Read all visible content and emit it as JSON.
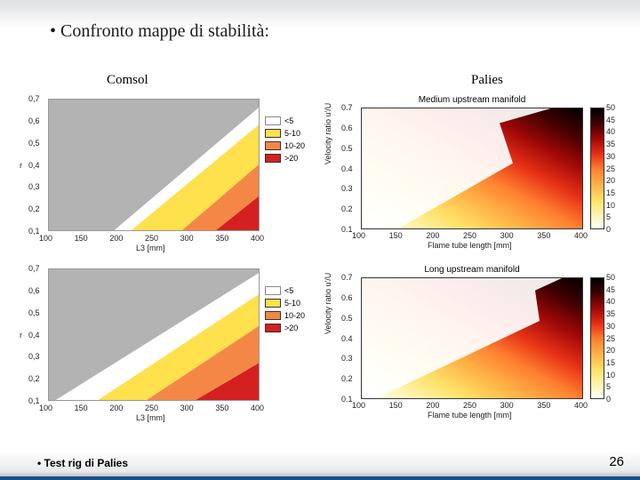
{
  "main_title": "Confronto mappe di stabilità:",
  "columns": {
    "left": "Comsol",
    "right": "Palies"
  },
  "footer": {
    "text": "Test rig di Palies",
    "page": "26",
    "bar_color": "#1b4f8b"
  },
  "comsol": {
    "type": "contour-band",
    "xlabel": "L3 [mm]",
    "ylabel": "r",
    "xlim": [
      100,
      400
    ],
    "xticks": [
      100,
      150,
      200,
      250,
      300,
      350,
      400
    ],
    "ylim": [
      0.1,
      0.7
    ],
    "yticks": [
      0.1,
      0.2,
      0.3,
      0.4,
      0.5,
      0.6,
      0.7
    ],
    "bands": [
      {
        "label": "<5",
        "color": "#b3b3b3"
      },
      {
        "label": "5-10",
        "color": "#ffe04d"
      },
      {
        "label": "10-20",
        "color": "#f58746"
      },
      {
        "label": ">20",
        "color": "#d42020"
      }
    ],
    "background_color": "#ffffff",
    "grid_color": "#c8c8c8",
    "label_fontsize": 9,
    "top": {
      "grey_poly": [
        [
          0,
          0
        ],
        [
          1,
          0
        ],
        [
          1,
          0.05
        ],
        [
          0.3,
          1
        ],
        [
          0,
          1
        ]
      ],
      "white_poly": [
        [
          0.05,
          1
        ],
        [
          0.3,
          1
        ],
        [
          1,
          0.05
        ],
        [
          1,
          0.18
        ],
        [
          0.38,
          1
        ]
      ],
      "yellow_poly": [
        [
          0.38,
          1
        ],
        [
          1,
          0.18
        ],
        [
          1,
          0.48
        ],
        [
          0.62,
          1
        ]
      ],
      "orange_poly": [
        [
          0.62,
          1
        ],
        [
          1,
          0.48
        ],
        [
          1,
          0.72
        ],
        [
          0.78,
          1
        ]
      ],
      "red_poly": [
        [
          0.78,
          1
        ],
        [
          1,
          0.72
        ],
        [
          1,
          1
        ]
      ]
    },
    "bottom": {
      "grey_poly": [
        [
          0,
          0
        ],
        [
          1,
          0
        ],
        [
          1,
          0.02
        ],
        [
          0.02,
          1
        ],
        [
          0,
          1
        ]
      ],
      "white_poly": [
        [
          0.02,
          1
        ],
        [
          1,
          0.02
        ],
        [
          1,
          0.18
        ],
        [
          0.22,
          1
        ]
      ],
      "yellow_poly": [
        [
          0.22,
          1
        ],
        [
          1,
          0.18
        ],
        [
          1,
          0.42
        ],
        [
          0.45,
          1
        ]
      ],
      "orange_poly": [
        [
          0.45,
          1
        ],
        [
          1,
          0.42
        ],
        [
          1,
          0.7
        ],
        [
          0.68,
          1
        ]
      ],
      "red_poly": [
        [
          0.68,
          1
        ],
        [
          1,
          0.7
        ],
        [
          1,
          1
        ]
      ]
    }
  },
  "palies": {
    "type": "heatmap",
    "xlabel": "Flame tube length [mm]",
    "ylabel": "Velocity ratio u'/U",
    "xlim": [
      100,
      400
    ],
    "xticks": [
      100,
      150,
      200,
      250,
      300,
      350,
      400
    ],
    "ylim": [
      0.1,
      0.7
    ],
    "yticks": [
      0.1,
      0.2,
      0.3,
      0.4,
      0.5,
      0.6,
      0.7
    ],
    "clim": [
      0,
      50
    ],
    "cticks": [
      0,
      5,
      10,
      15,
      20,
      25,
      30,
      35,
      40,
      45,
      50
    ],
    "colormap": [
      "#ffffff",
      "#fff5b0",
      "#ffe066",
      "#ffb347",
      "#ff8030",
      "#e63015",
      "#a00808",
      "#400000",
      "#000000"
    ],
    "label_fontsize": 9,
    "plots": {
      "top": {
        "title": "Medium upstream manifold"
      },
      "bottom": {
        "title": "Long upstream manifold"
      }
    }
  }
}
